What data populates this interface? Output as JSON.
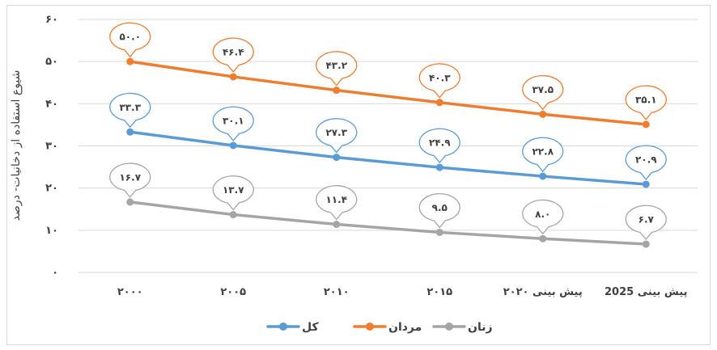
{
  "chart_data": {
    "type": "line",
    "ylabel": "شیوع استفاده از دخانیات- درصد",
    "ylim": [
      0,
      60
    ],
    "yticks": [
      0,
      10,
      20,
      30,
      40,
      50,
      60
    ],
    "ytick_labels": [
      "۰",
      "۱۰",
      "۲۰",
      "۳۰",
      "۴۰",
      "۵۰",
      "۶۰"
    ],
    "categories": [
      "۲۰۰۰",
      "۲۰۰۵",
      "۲۰۱۰",
      "۲۰۱۵",
      "پیش بینی ۲۰۲۰",
      "پیش بینی 2025"
    ],
    "grid": true,
    "legend_position": "bottom",
    "series": [
      {
        "name": "کل",
        "color": "#5b9bd5",
        "values": [
          33.3,
          30.1,
          27.3,
          24.9,
          22.8,
          20.9
        ],
        "labels": [
          "۳۳.۳",
          "۳۰.۱",
          "۲۷.۳",
          "۲۴.۹",
          "۲۲.۸",
          "۲۰.۹"
        ]
      },
      {
        "name": "مردان",
        "color": "#ed7d31",
        "values": [
          50.0,
          46.4,
          43.2,
          40.3,
          37.5,
          35.1
        ],
        "labels": [
          "۵۰.۰",
          "۴۶.۴",
          "۴۳.۲",
          "۴۰.۳",
          "۳۷.۵",
          "۳۵.۱"
        ]
      },
      {
        "name": "زنان",
        "color": "#a5a5a5",
        "values": [
          16.7,
          13.7,
          11.4,
          9.5,
          8.0,
          6.7
        ],
        "labels": [
          "۱۶.۷",
          "۱۳.۷",
          "۱۱.۴",
          "۹.۵",
          "۸.۰",
          "۶.۷"
        ]
      }
    ]
  }
}
